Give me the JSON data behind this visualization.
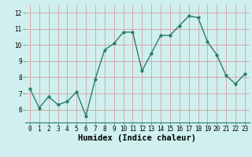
{
  "x": [
    0,
    1,
    2,
    3,
    4,
    5,
    6,
    7,
    8,
    9,
    10,
    11,
    12,
    13,
    14,
    15,
    16,
    17,
    18,
    19,
    20,
    21,
    22,
    23
  ],
  "y": [
    7.3,
    6.1,
    6.8,
    6.3,
    6.5,
    7.1,
    5.6,
    7.9,
    9.7,
    10.1,
    10.8,
    10.8,
    8.4,
    9.5,
    10.6,
    10.6,
    11.2,
    11.8,
    11.7,
    10.2,
    9.4,
    8.1,
    7.6,
    8.2
  ],
  "xlim": [
    -0.5,
    23.5
  ],
  "ylim": [
    5.2,
    12.5
  ],
  "yticks": [
    6,
    7,
    8,
    9,
    10,
    11,
    12
  ],
  "xticks": [
    0,
    1,
    2,
    3,
    4,
    5,
    6,
    7,
    8,
    9,
    10,
    11,
    12,
    13,
    14,
    15,
    16,
    17,
    18,
    19,
    20,
    21,
    22,
    23
  ],
  "xlabel": "Humidex (Indice chaleur)",
  "line_color": "#2a7d6d",
  "marker_color": "#2a7d6d",
  "bg_color": "#cff0ee",
  "grid_color": "#d4a0a0",
  "axis_bg": "#cff0ee",
  "tick_label_fontsize": 5.5,
  "xlabel_fontsize": 7.5,
  "xlabel_fontweight": "bold"
}
